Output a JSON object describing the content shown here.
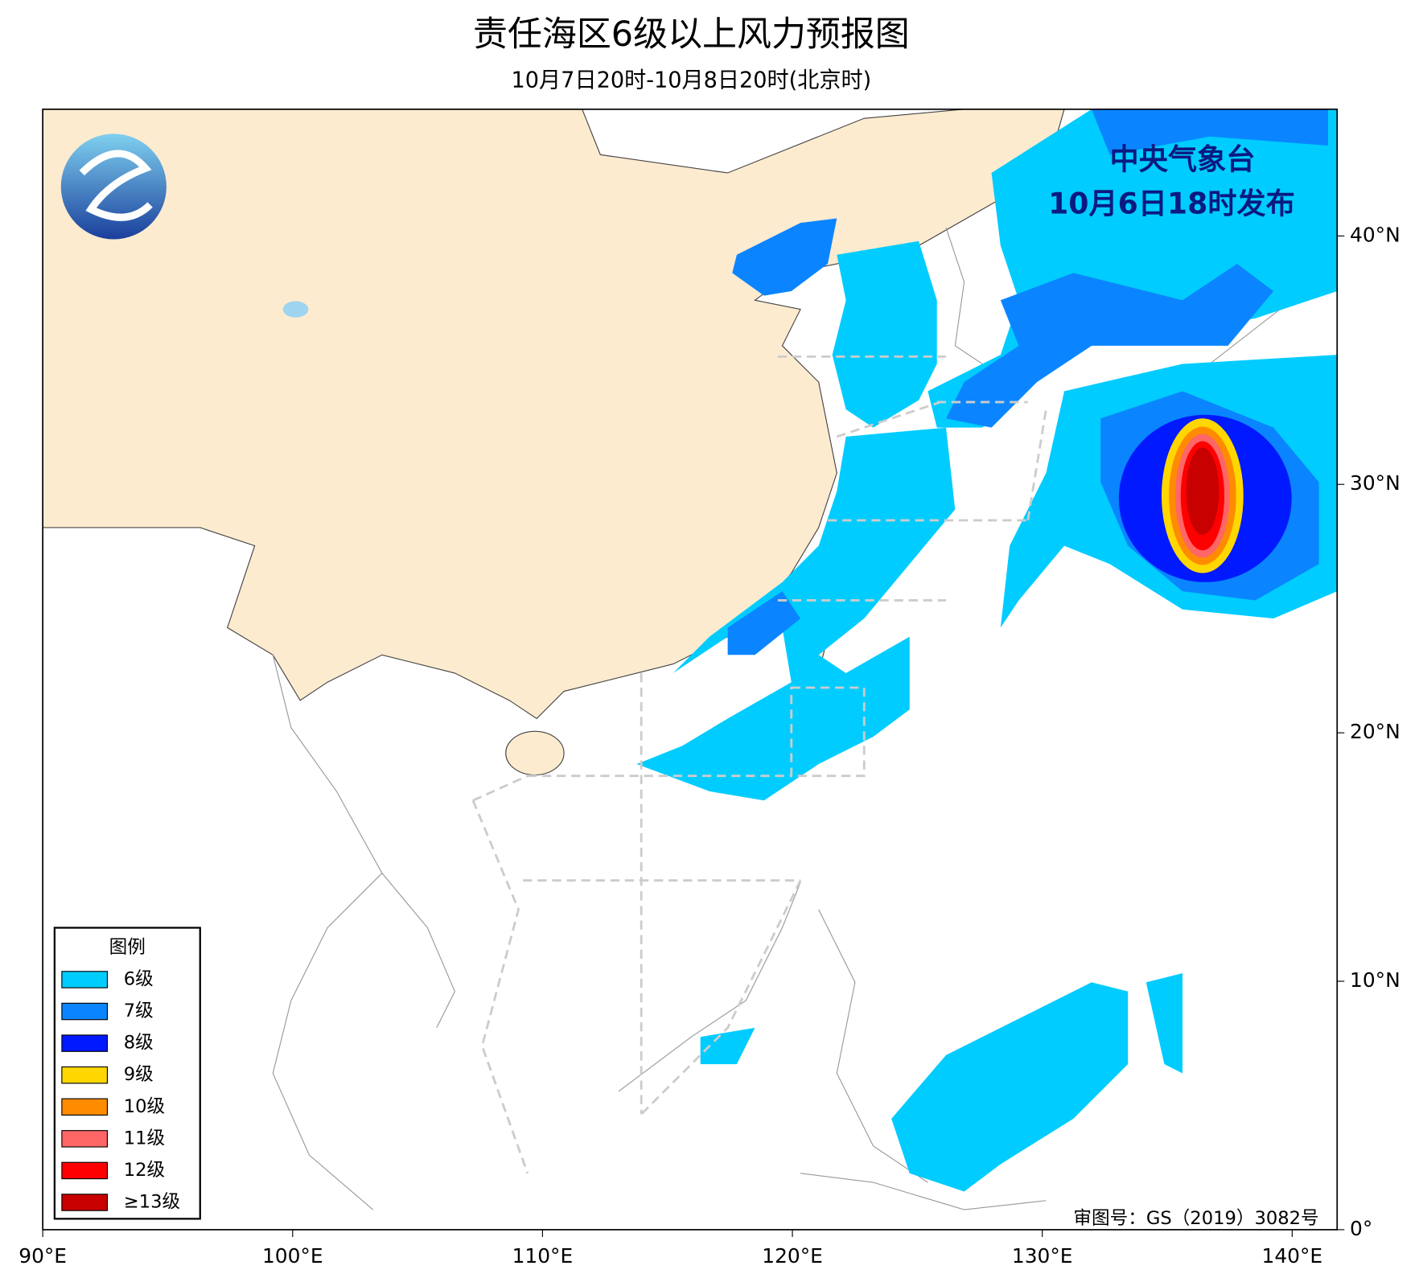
{
  "header": {
    "title": "责任海区6级以上风力预报图",
    "subtitle": "10月7日20时-10月8日20时(北京时)"
  },
  "issuer": {
    "agency": "中央气象台",
    "issued": "10月6日18时发布"
  },
  "map": {
    "xlim": [
      90,
      141.8
    ],
    "ylim": [
      0,
      45.1
    ],
    "xticks": [
      {
        "value": 90,
        "label": "90°E"
      },
      {
        "value": 100,
        "label": "100°E"
      },
      {
        "value": 110,
        "label": "110°E"
      },
      {
        "value": 120,
        "label": "120°E"
      },
      {
        "value": 130,
        "label": "130°E"
      },
      {
        "value": 140,
        "label": "140°E"
      }
    ],
    "yticks": [
      {
        "value": 0,
        "label": "0°"
      },
      {
        "value": 10,
        "label": "10°N"
      },
      {
        "value": 20,
        "label": "20°N"
      },
      {
        "value": 30,
        "label": "30°N"
      },
      {
        "value": 40,
        "label": "40°N"
      }
    ]
  },
  "legend": {
    "title": "图例",
    "items": [
      {
        "name": "6级",
        "color": "#00ccff"
      },
      {
        "name": "7级",
        "color": "#0a85ff"
      },
      {
        "name": "8级",
        "color": "#0019ff"
      },
      {
        "name": "9级",
        "color": "#ffd700"
      },
      {
        "name": "10级",
        "color": "#ff8c00"
      },
      {
        "name": "11级",
        "color": "#ff6666"
      },
      {
        "name": "12级",
        "color": "#ff0000"
      },
      {
        "name": "≥13级",
        "color": "#c80000"
      }
    ]
  },
  "credit": "审图号：GS（2019）3082号"
}
